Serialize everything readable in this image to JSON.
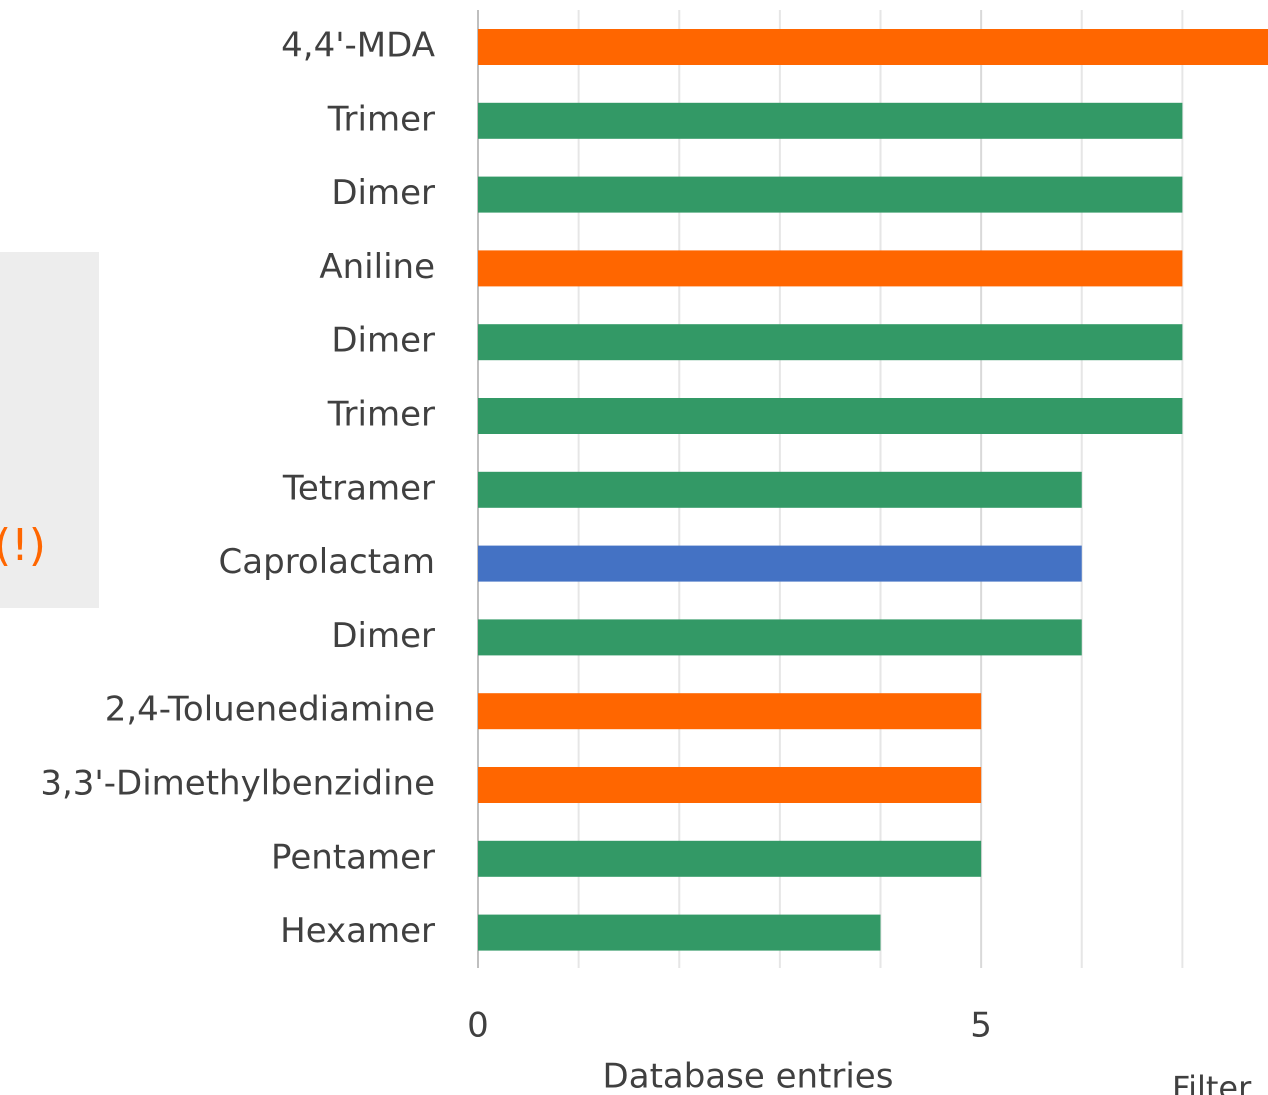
{
  "chart_data": {
    "type": "bar",
    "orientation": "horizontal",
    "categories": [
      "4,4'-MDA",
      "Trimer",
      "Dimer",
      "Aniline",
      "Dimer",
      "Trimer",
      "Tetramer",
      "Caprolactam",
      "Dimer",
      "2,4-Toluenediamine",
      "3,3'-Dimethylbenzidine",
      "Pentamer",
      "Hexamer"
    ],
    "values": [
      8,
      7,
      7,
      7,
      7,
      7,
      6,
      6,
      6,
      5,
      5,
      5,
      4
    ],
    "colors": [
      "#ff6600",
      "#339966",
      "#339966",
      "#ff6600",
      "#339966",
      "#339966",
      "#339966",
      "#4472c4",
      "#339966",
      "#ff6600",
      "#ff6600",
      "#339966",
      "#339966"
    ],
    "xlabel": "Database entries",
    "xlim": [
      0,
      8
    ],
    "xticks": [
      0,
      5
    ],
    "minor_xticks": [
      1,
      2,
      3,
      4,
      6,
      7
    ],
    "grid": true,
    "annotations": [
      "(!)",
      "Filter"
    ]
  }
}
